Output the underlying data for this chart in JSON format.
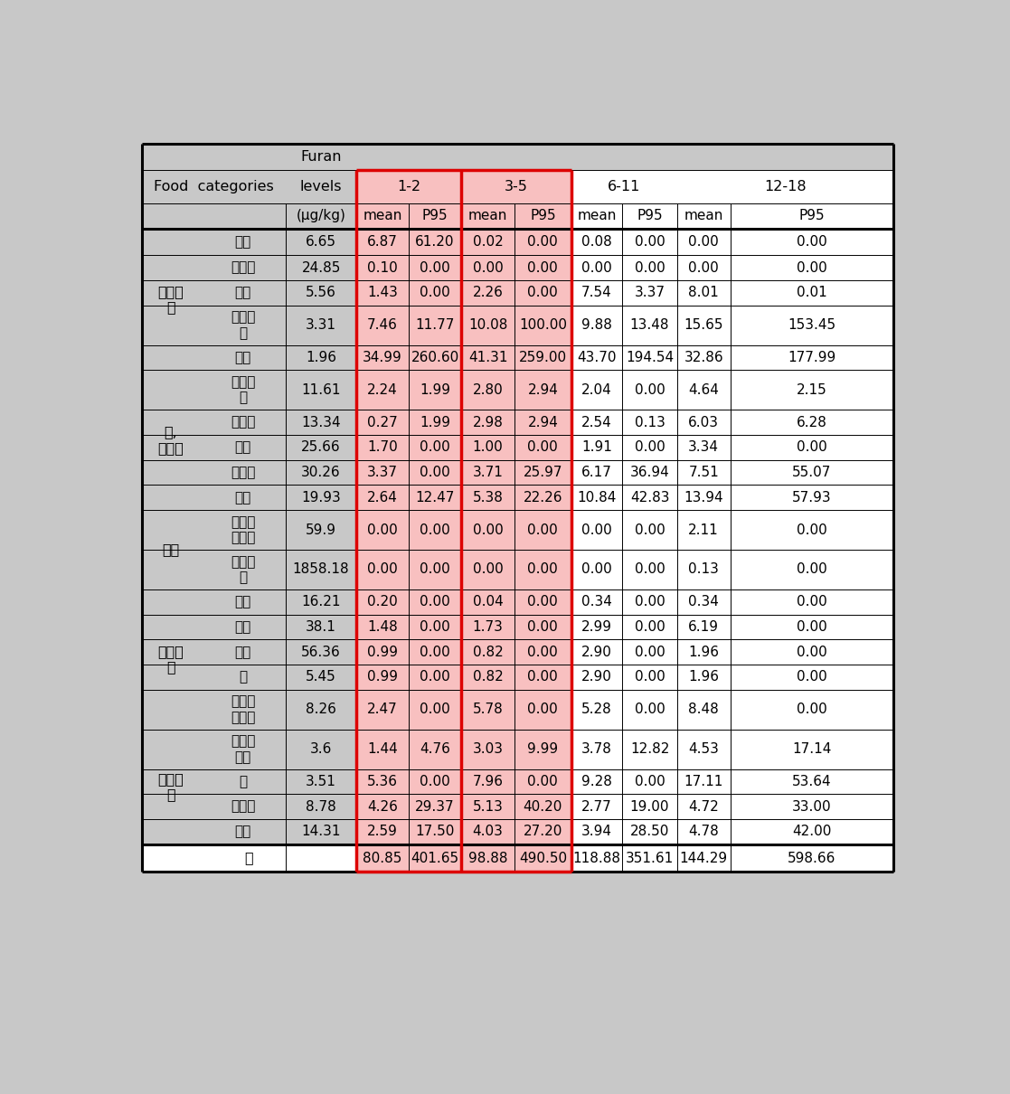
{
  "bg_color": "#c8c8c8",
  "highlight_bg": "#f8c0c0",
  "red_border": "#dd0000",
  "categories": [
    {
      "cat": "영유아\n식",
      "sub": "분유",
      "furan": "6.65",
      "data": [
        "6.87",
        "61.20",
        "0.02",
        "0.00",
        "0.08",
        "0.00",
        "0.00",
        "0.00"
      ]
    },
    {
      "cat": "",
      "sub": "이유식",
      "furan": "24.85",
      "data": [
        "0.10",
        "0.00",
        "0.00",
        "0.00",
        "0.00",
        "0.00",
        "0.00",
        "0.00"
      ]
    },
    {
      "cat": "",
      "sub": "음료",
      "furan": "5.56",
      "data": [
        "1.43",
        "0.00",
        "2.26",
        "0.00",
        "7.54",
        "3.37",
        "8.01",
        "0.01"
      ]
    },
    {
      "cat": "",
      "sub": "과일주\n스",
      "furan": "3.31",
      "data": [
        "7.46",
        "11.77",
        "10.08",
        "100.00",
        "9.88",
        "13.48",
        "15.65",
        "153.45"
      ]
    },
    {
      "cat": "",
      "sub": "과일",
      "furan": "1.96",
      "data": [
        "34.99",
        "260.60",
        "41.31",
        "259.00",
        "43.70",
        "194.54",
        "32.86",
        "177.99"
      ]
    },
    {
      "cat": "병,\n통조림",
      "sub": "곡류두\n류",
      "furan": "11.61",
      "data": [
        "2.24",
        "1.99",
        "2.80",
        "2.94",
        "2.04",
        "0.00",
        "4.64",
        "2.15"
      ]
    },
    {
      "cat": "",
      "sub": "채소류",
      "furan": "13.34",
      "data": [
        "0.27",
        "1.99",
        "2.98",
        "2.94",
        "2.54",
        "0.13",
        "6.03",
        "6.28"
      ]
    },
    {
      "cat": "",
      "sub": "육류",
      "furan": "25.66",
      "data": [
        "1.70",
        "0.00",
        "1.00",
        "0.00",
        "1.91",
        "0.00",
        "3.34",
        "0.00"
      ]
    },
    {
      "cat": "",
      "sub": "수산물",
      "furan": "30.26",
      "data": [
        "3.37",
        "0.00",
        "3.71",
        "25.97",
        "6.17",
        "36.94",
        "7.51",
        "55.07"
      ]
    },
    {
      "cat": "",
      "sub": "소스",
      "furan": "19.93",
      "data": [
        "2.64",
        "12.47",
        "5.38",
        "22.26",
        "10.84",
        "42.83",
        "13.94",
        "57.93"
      ]
    },
    {
      "cat": "커피",
      "sub": "인스턴\n트커피",
      "furan": "59.9",
      "data": [
        "0.00",
        "0.00",
        "0.00",
        "0.00",
        "0.00",
        "0.00",
        "2.11",
        "0.00"
      ]
    },
    {
      "cat": "",
      "sub": "원두커\n피",
      "furan": "1858.18",
      "data": [
        "0.00",
        "0.00",
        "0.00",
        "0.00",
        "0.00",
        "0.00",
        "0.13",
        "0.00"
      ]
    },
    {
      "cat": "즉석식\n품",
      "sub": "스프",
      "furan": "16.21",
      "data": [
        "0.20",
        "0.00",
        "0.04",
        "0.00",
        "0.34",
        "0.00",
        "0.34",
        "0.00"
      ]
    },
    {
      "cat": "",
      "sub": "카레",
      "furan": "38.1",
      "data": [
        "1.48",
        "0.00",
        "1.73",
        "0.00",
        "2.99",
        "0.00",
        "6.19",
        "0.00"
      ]
    },
    {
      "cat": "",
      "sub": "짜장",
      "furan": "56.36",
      "data": [
        "0.99",
        "0.00",
        "0.82",
        "0.00",
        "2.90",
        "0.00",
        "1.96",
        "0.00"
      ]
    },
    {
      "cat": "",
      "sub": "국",
      "furan": "5.45",
      "data": [
        "0.99",
        "0.00",
        "0.82",
        "0.00",
        "2.90",
        "0.00",
        "1.96",
        "0.00"
      ]
    },
    {
      "cat": "",
      "sub": "영양강\n화음료",
      "furan": "8.26",
      "data": [
        "2.47",
        "0.00",
        "5.78",
        "0.00",
        "5.28",
        "0.00",
        "8.48",
        "0.00"
      ]
    },
    {
      "cat": "기타식\n품",
      "sub": "당류가\n공품",
      "furan": "3.6",
      "data": [
        "1.44",
        "4.76",
        "3.03",
        "9.99",
        "3.78",
        "12.82",
        "4.53",
        "17.14"
      ]
    },
    {
      "cat": "",
      "sub": "빵",
      "furan": "3.51",
      "data": [
        "5.36",
        "0.00",
        "7.96",
        "0.00",
        "9.28",
        "0.00",
        "17.11",
        "53.64"
      ]
    },
    {
      "cat": "",
      "sub": "비스킷",
      "furan": "8.78",
      "data": [
        "4.26",
        "29.37",
        "5.13",
        "40.20",
        "2.77",
        "19.00",
        "4.72",
        "33.00"
      ]
    },
    {
      "cat": "",
      "sub": "스낵",
      "furan": "14.31",
      "data": [
        "2.59",
        "17.50",
        "4.03",
        "27.20",
        "3.94",
        "28.50",
        "4.78",
        "42.00"
      ]
    }
  ],
  "totals": [
    "80.85",
    "401.65",
    "98.88",
    "490.50",
    "118.88",
    "351.61",
    "144.29",
    "598.66"
  ],
  "cat_spans": [
    [
      "영유아\n식",
      0,
      4
    ],
    [
      "병,\n통조림",
      5,
      9
    ],
    [
      "커피",
      10,
      11
    ],
    [
      "즉석식\n품",
      12,
      16
    ],
    [
      "기타식\n품",
      17,
      20
    ]
  ]
}
